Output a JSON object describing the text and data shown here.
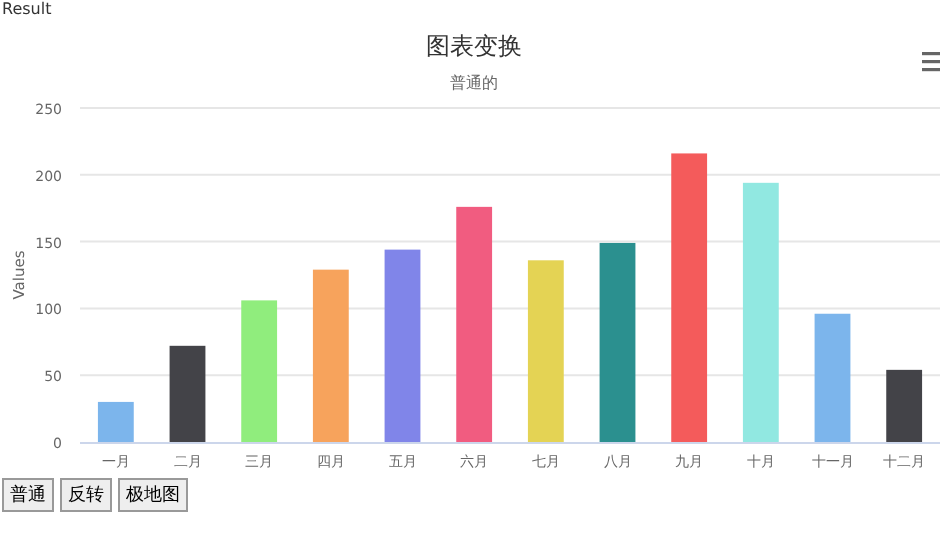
{
  "chart_data": {
    "type": "bar",
    "title": "图表变换",
    "subtitle": "普通的",
    "ylabel": "Values",
    "categories": [
      "一月",
      "二月",
      "三月",
      "四月",
      "五月",
      "六月",
      "七月",
      "八月",
      "九月",
      "十月",
      "十一月",
      "十二月"
    ],
    "values": [
      30,
      72,
      106,
      129,
      144,
      176,
      136,
      149,
      216,
      194,
      96,
      54
    ],
    "colors": [
      "#7cb5ec",
      "#434348",
      "#90ed7d",
      "#f7a35c",
      "#8085e9",
      "#f15c80",
      "#e4d354",
      "#2b908f",
      "#f45b5b",
      "#91e8e1",
      "#7cb5ec",
      "#434348"
    ],
    "ylim": [
      0,
      250
    ],
    "yticks": [
      0,
      50,
      100,
      150,
      200,
      250
    ],
    "grid": "y",
    "annotations": [
      "Result",
      "普通",
      "反转",
      "极地图"
    ]
  }
}
